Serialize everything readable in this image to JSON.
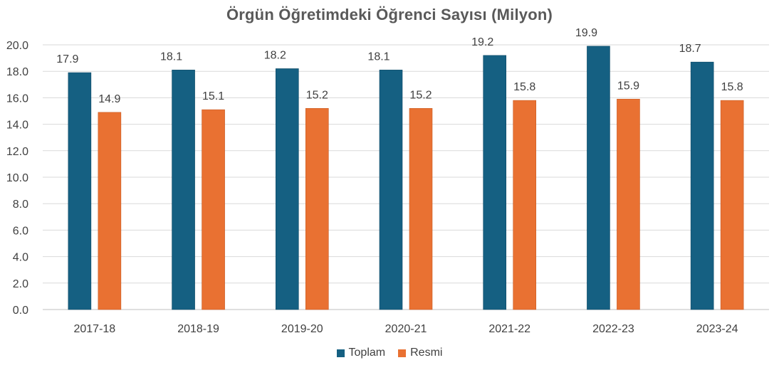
{
  "chart_data": {
    "type": "bar",
    "title": "Örgün Öğretimdeki Öğrenci Sayısı (Milyon)",
    "categories": [
      "2017-18",
      "2018-19",
      "2019-20",
      "2020-21",
      "2021-22",
      "2022-23",
      "2023-24"
    ],
    "series": [
      {
        "name": "Toplam",
        "color": "#156082",
        "values": [
          17.9,
          18.1,
          18.2,
          18.1,
          19.2,
          19.9,
          18.7
        ]
      },
      {
        "name": "Resmi",
        "color": "#E97132",
        "values": [
          14.9,
          15.1,
          15.2,
          15.2,
          15.8,
          15.9,
          15.8
        ]
      }
    ],
    "ylim": [
      0,
      20
    ],
    "yticks": [
      "0.0",
      "2.0",
      "4.0",
      "6.0",
      "8.0",
      "10.0",
      "12.0",
      "14.0",
      "16.0",
      "18.0",
      "20.0"
    ],
    "grid": true,
    "legend": "bottom",
    "data_labels": true
  }
}
